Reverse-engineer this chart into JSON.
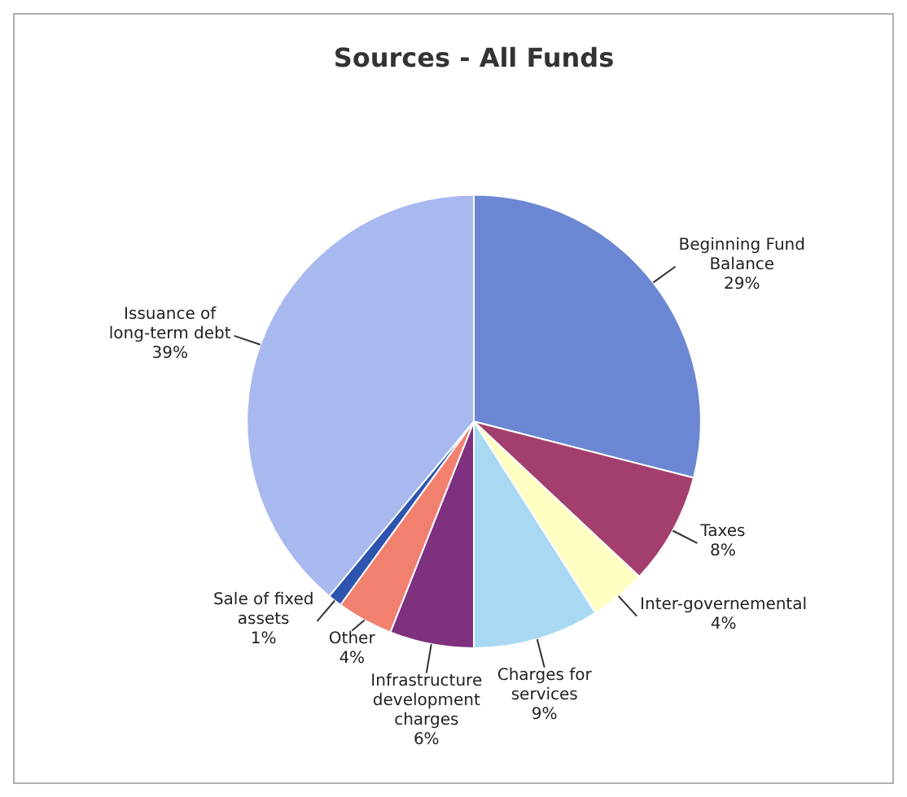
{
  "chart_data": {
    "type": "pie",
    "title": "Sources - All Funds",
    "categories": [
      "Beginning Fund Balance",
      "Taxes",
      "Inter-governemental",
      "Charges for services",
      "Infrastructure development charges",
      "Other",
      "Sale of fixed assets",
      "Issuance of long-term debt"
    ],
    "values": [
      29,
      8,
      4,
      9,
      6,
      4,
      1,
      39
    ],
    "value_labels": [
      "29%",
      "8%",
      "4%",
      "9%",
      "6%",
      "4%",
      "1%",
      "39%"
    ],
    "colors": [
      "#6b86d2",
      "#a33f6e",
      "#ffffc4",
      "#a9d9f2",
      "#7f307f",
      "#f2806f",
      "#2d55b0",
      "#a7b9ef"
    ],
    "legend": false
  }
}
